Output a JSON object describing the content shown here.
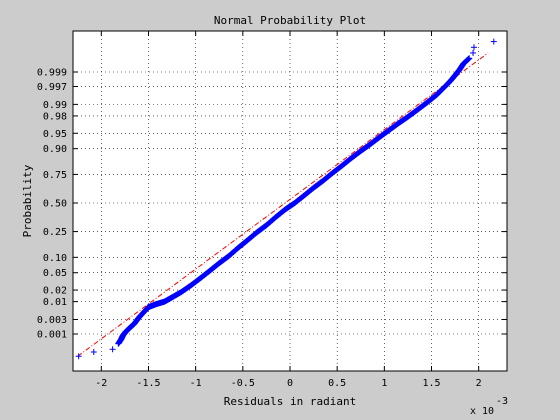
{
  "figure": {
    "background": "#cccccc",
    "axes_background": "#ffffff"
  },
  "chart_data": {
    "type": "scatter",
    "title": "Normal Probability Plot",
    "xlabel": "Residuals in radiant",
    "ylabel": "Probability",
    "x_exponent_label": "x 10",
    "x_exponent": "-3",
    "xlim": [
      -2.3,
      2.3
    ],
    "x_ticks": [
      -2,
      -1.5,
      -1,
      -0.5,
      0,
      0.5,
      1,
      1.5,
      2
    ],
    "x_tick_labels": [
      "-2",
      "-1.5",
      "-1",
      "-0.5",
      "0",
      "0.5",
      "1",
      "1.5",
      "2"
    ],
    "y_scale": "normal-probability",
    "y_ticks": [
      0.001,
      0.003,
      0.01,
      0.02,
      0.05,
      0.1,
      0.25,
      0.5,
      0.75,
      0.9,
      0.95,
      0.98,
      0.99,
      0.997,
      0.999
    ],
    "y_tick_labels": [
      "0.001",
      "0.003",
      "0.01",
      "0.02",
      "0.05",
      "0.10",
      "0.25",
      "0.50",
      "0.75",
      "0.90",
      "0.95",
      "0.98",
      "0.99",
      "0.997",
      "0.999"
    ],
    "grid": true,
    "marker": "+",
    "marker_color": "#0000ff",
    "reference_line_color": "#ff0000",
    "reference_line_style": "dash-dot",
    "reference_line": {
      "x": [
        -2.25,
        2.1
      ],
      "probability": [
        0.00015,
        0.9998
      ]
    },
    "points": [
      {
        "x": -2.24,
        "p": 0.00015
      },
      {
        "x": -2.08,
        "p": 0.00022
      },
      {
        "x": -1.88,
        "p": 0.00028
      },
      {
        "x": -1.82,
        "p": 0.00045
      },
      {
        "x": -1.79,
        "p": 0.00065
      },
      {
        "x": -1.77,
        "p": 0.0009
      },
      {
        "x": -1.74,
        "p": 0.0012
      },
      {
        "x": -1.7,
        "p": 0.0016
      },
      {
        "x": -1.65,
        "p": 0.0022
      },
      {
        "x": -1.6,
        "p": 0.0035
      },
      {
        "x": -1.55,
        "p": 0.005
      },
      {
        "x": -1.5,
        "p": 0.007
      },
      {
        "x": -1.42,
        "p": 0.0085
      },
      {
        "x": -1.33,
        "p": 0.01
      },
      {
        "x": -1.25,
        "p": 0.013
      },
      {
        "x": -1.15,
        "p": 0.018
      },
      {
        "x": -1.05,
        "p": 0.026
      },
      {
        "x": -0.95,
        "p": 0.038
      },
      {
        "x": -0.85,
        "p": 0.055
      },
      {
        "x": -0.75,
        "p": 0.078
      },
      {
        "x": -0.65,
        "p": 0.105
      },
      {
        "x": -0.55,
        "p": 0.145
      },
      {
        "x": -0.45,
        "p": 0.19
      },
      {
        "x": -0.35,
        "p": 0.245
      },
      {
        "x": -0.25,
        "p": 0.3
      },
      {
        "x": -0.15,
        "p": 0.37
      },
      {
        "x": -0.05,
        "p": 0.44
      },
      {
        "x": 0.05,
        "p": 0.5
      },
      {
        "x": 0.15,
        "p": 0.57
      },
      {
        "x": 0.25,
        "p": 0.64
      },
      {
        "x": 0.35,
        "p": 0.7
      },
      {
        "x": 0.45,
        "p": 0.76
      },
      {
        "x": 0.55,
        "p": 0.81
      },
      {
        "x": 0.65,
        "p": 0.855
      },
      {
        "x": 0.75,
        "p": 0.89
      },
      {
        "x": 0.85,
        "p": 0.917
      },
      {
        "x": 0.95,
        "p": 0.94
      },
      {
        "x": 1.05,
        "p": 0.957
      },
      {
        "x": 1.15,
        "p": 0.97
      },
      {
        "x": 1.25,
        "p": 0.979
      },
      {
        "x": 1.35,
        "p": 0.986
      },
      {
        "x": 1.45,
        "p": 0.991
      },
      {
        "x": 1.55,
        "p": 0.9945
      },
      {
        "x": 1.62,
        "p": 0.9965
      },
      {
        "x": 1.7,
        "p": 0.998
      },
      {
        "x": 1.75,
        "p": 0.9987
      },
      {
        "x": 1.8,
        "p": 0.9992
      },
      {
        "x": 1.84,
        "p": 0.9995
      },
      {
        "x": 1.9,
        "p": 0.99968
      },
      {
        "x": 1.94,
        "p": 0.9998
      },
      {
        "x": 1.95,
        "p": 0.99988
      },
      {
        "x": 2.16,
        "p": 0.99993
      }
    ]
  }
}
